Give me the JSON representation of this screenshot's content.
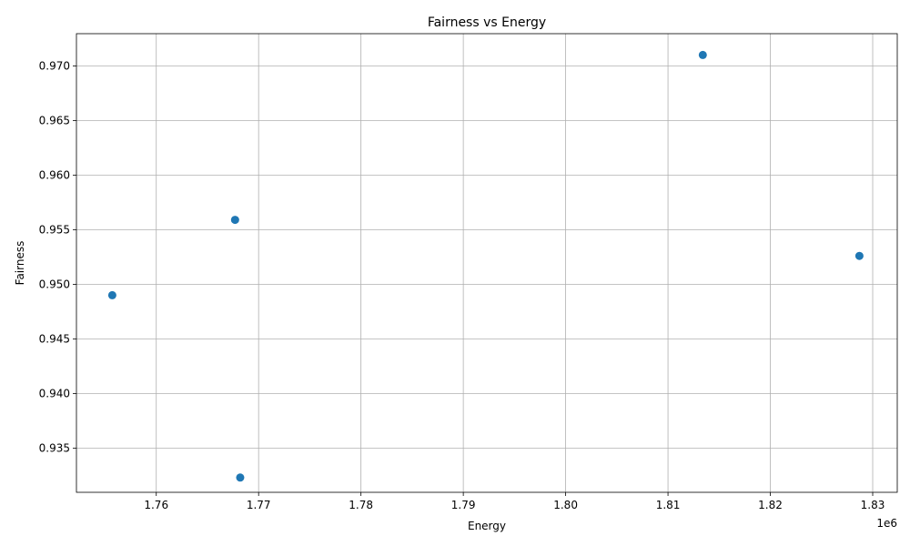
{
  "chart_data": {
    "type": "scatter",
    "title": "Fairness vs Energy",
    "xlabel": "Energy",
    "ylabel": "Fairness",
    "x_offset_label": "1e6",
    "x_scale": 1000000,
    "xlim": [
      1.7522,
      1.8324
    ],
    "ylim": [
      0.93095,
      0.97295
    ],
    "x_ticks": [
      1.76,
      1.77,
      1.78,
      1.79,
      1.8,
      1.81,
      1.82,
      1.83
    ],
    "x_tick_labels": [
      "1.76",
      "1.77",
      "1.78",
      "1.79",
      "1.80",
      "1.81",
      "1.82",
      "1.83"
    ],
    "y_ticks": [
      0.935,
      0.94,
      0.945,
      0.95,
      0.955,
      0.96,
      0.965,
      0.97
    ],
    "y_tick_labels": [
      "0.935",
      "0.940",
      "0.945",
      "0.950",
      "0.955",
      "0.960",
      "0.965",
      "0.970"
    ],
    "grid": true,
    "marker_color": "#1f77b4",
    "points": [
      {
        "x": 1755700,
        "y": 0.949
      },
      {
        "x": 1767700,
        "y": 0.9559
      },
      {
        "x": 1768200,
        "y": 0.9323
      },
      {
        "x": 1813400,
        "y": 0.971
      },
      {
        "x": 1828700,
        "y": 0.9526
      }
    ]
  }
}
